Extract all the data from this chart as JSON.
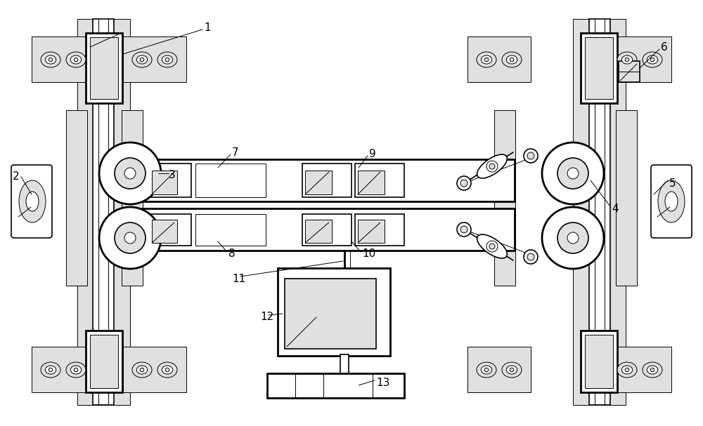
{
  "bg_color": "#ffffff",
  "lc": "#000000",
  "gc": "#c8c8c8",
  "lgc": "#e0e0e0",
  "fw": 10.0,
  "fh": 6.07,
  "dpi": 100
}
